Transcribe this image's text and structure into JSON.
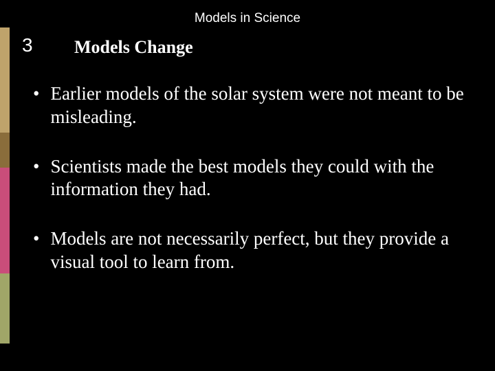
{
  "slide": {
    "header_title": "Models in Science",
    "section_number": "3",
    "section_title": "Models Change",
    "bullets": [
      "Earlier models of the solar system were not meant to be misleading.",
      "Scientists made the best models they could with the information they had.",
      "Models are not necessarily perfect, but they provide a visual tool to learn from."
    ],
    "colors": {
      "background": "#000000",
      "text": "#ffffff",
      "accent1": "#bfa36b",
      "accent2": "#8a6d3b",
      "accent3": "#c94d7a",
      "accent4": "#a0a668"
    },
    "typography": {
      "header_fontsize": 19,
      "section_number_fontsize": 28,
      "section_title_fontsize": 26,
      "bullet_fontsize": 27
    }
  }
}
